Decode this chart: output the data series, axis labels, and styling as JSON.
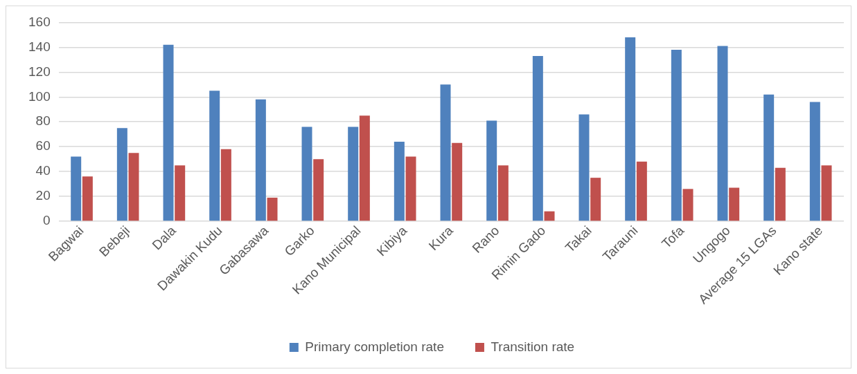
{
  "chart_data": {
    "type": "bar",
    "categories": [
      "Bagwai",
      "Bebeji",
      "Dala",
      "Dawakin Kudu",
      "Gabasawa",
      "Garko",
      "Kano Municipal",
      "Kibiya",
      "Kura",
      "Rano",
      "Rimin Gado",
      "Takai",
      "Tarauni",
      "Tofa",
      "Ungogo",
      "Average 15 LGAs",
      "Kano state"
    ],
    "series": [
      {
        "name": "Primary completion rate",
        "color": "#4f81bd",
        "values": [
          52,
          75,
          142,
          105,
          98,
          76,
          76,
          64,
          110,
          81,
          133,
          86,
          148,
          138,
          141,
          102,
          96
        ]
      },
      {
        "name": "Transition rate",
        "color": "#c0504d",
        "values": [
          36,
          55,
          45,
          58,
          19,
          50,
          85,
          52,
          63,
          45,
          8,
          35,
          48,
          26,
          27,
          43,
          45
        ]
      }
    ],
    "ylim": [
      0,
      160
    ],
    "yticks": [
      0,
      20,
      40,
      60,
      80,
      100,
      120,
      140,
      160
    ],
    "grid": "y",
    "legend": "bottom"
  }
}
